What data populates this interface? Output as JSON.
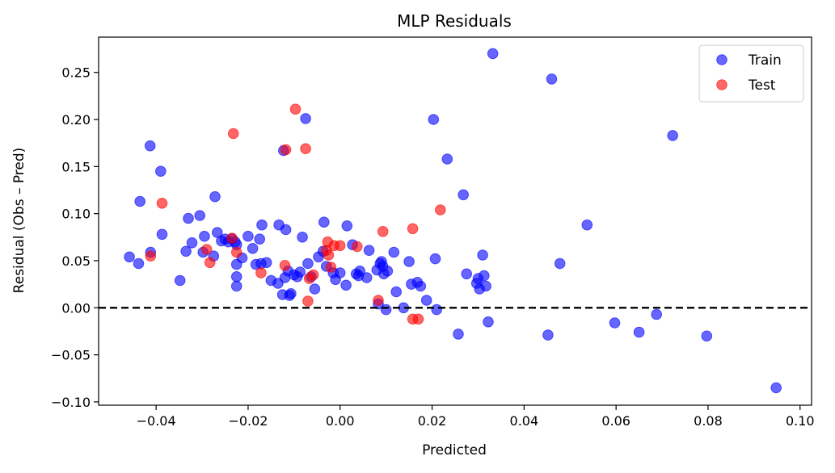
{
  "chart_data": {
    "type": "scatter",
    "title": "MLP Residuals",
    "xlabel": "Predicted",
    "ylabel": "Residual (Obs – Pred)",
    "xlim": [
      -0.0525,
      0.1025
    ],
    "ylim": [
      -0.1035,
      0.2875
    ],
    "xticks": [
      -0.04,
      -0.02,
      0.0,
      0.02,
      0.04,
      0.06,
      0.08,
      0.1
    ],
    "xtick_labels": [
      "−0.04",
      "−0.02",
      "0.00",
      "0.02",
      "0.04",
      "0.06",
      "0.08",
      "0.10"
    ],
    "yticks": [
      -0.1,
      -0.05,
      0.0,
      0.05,
      0.1,
      0.15,
      0.2,
      0.25
    ],
    "ytick_labels": [
      "−0.10",
      "−0.05",
      "0.00",
      "0.05",
      "0.10",
      "0.15",
      "0.20",
      "0.25"
    ],
    "grid": false,
    "legend_position": "top-right",
    "reference_line": {
      "y": 0.0,
      "style": "dashed",
      "color": "#000000"
    },
    "series": [
      {
        "name": "Train",
        "color": "#0000ff",
        "points": [
          [
            -0.0458,
            0.054
          ],
          [
            -0.0438,
            0.047
          ],
          [
            -0.0435,
            0.113
          ],
          [
            -0.0413,
            0.172
          ],
          [
            -0.0412,
            0.059
          ],
          [
            -0.039,
            0.145
          ],
          [
            -0.0387,
            0.078
          ],
          [
            -0.0348,
            0.029
          ],
          [
            -0.0335,
            0.06
          ],
          [
            -0.033,
            0.095
          ],
          [
            -0.0322,
            0.069
          ],
          [
            -0.0305,
            0.098
          ],
          [
            -0.0298,
            0.059
          ],
          [
            -0.0295,
            0.076
          ],
          [
            -0.0275,
            0.055
          ],
          [
            -0.0272,
            0.118
          ],
          [
            -0.0267,
            0.08
          ],
          [
            -0.0258,
            0.071
          ],
          [
            -0.025,
            0.073
          ],
          [
            -0.0243,
            0.07
          ],
          [
            -0.0235,
            0.073
          ],
          [
            -0.0228,
            0.07
          ],
          [
            -0.0225,
            0.046
          ],
          [
            -0.0225,
            0.067
          ],
          [
            -0.0225,
            0.033
          ],
          [
            -0.0225,
            0.023
          ],
          [
            -0.0213,
            0.053
          ],
          [
            -0.02,
            0.076
          ],
          [
            -0.019,
            0.063
          ],
          [
            -0.0183,
            0.046
          ],
          [
            -0.0175,
            0.073
          ],
          [
            -0.0172,
            0.047
          ],
          [
            -0.017,
            0.088
          ],
          [
            -0.016,
            0.048
          ],
          [
            -0.015,
            0.029
          ],
          [
            -0.0135,
            0.026
          ],
          [
            -0.0133,
            0.088
          ],
          [
            -0.0125,
            0.014
          ],
          [
            -0.0123,
            0.167
          ],
          [
            -0.012,
            0.032
          ],
          [
            -0.0118,
            0.083
          ],
          [
            -0.0113,
            0.039
          ],
          [
            -0.011,
            0.013
          ],
          [
            -0.0107,
            0.015
          ],
          [
            -0.01,
            0.035
          ],
          [
            -0.0093,
            0.033
          ],
          [
            -0.0087,
            0.038
          ],
          [
            -0.0082,
            0.075
          ],
          [
            -0.0075,
            0.201
          ],
          [
            -0.007,
            0.047
          ],
          [
            -0.0063,
            0.033
          ],
          [
            -0.0055,
            0.02
          ],
          [
            -0.0047,
            0.054
          ],
          [
            -0.0037,
            0.06
          ],
          [
            -0.0035,
            0.091
          ],
          [
            -0.003,
            0.044
          ],
          [
            -0.0015,
            0.037
          ],
          [
            -0.001,
            0.03
          ],
          [
            0.0,
            0.037
          ],
          [
            0.0013,
            0.024
          ],
          [
            0.0015,
            0.087
          ],
          [
            0.0027,
            0.067
          ],
          [
            0.0035,
            0.036
          ],
          [
            0.004,
            0.034
          ],
          [
            0.0043,
            0.039
          ],
          [
            0.0058,
            0.032
          ],
          [
            0.0063,
            0.061
          ],
          [
            0.008,
            0.04
          ],
          [
            0.0083,
            0.004
          ],
          [
            0.0087,
            0.047
          ],
          [
            0.009,
            0.049
          ],
          [
            0.0093,
            0.044
          ],
          [
            0.0095,
            0.036
          ],
          [
            0.01,
            -0.002
          ],
          [
            0.0103,
            0.039
          ],
          [
            0.0117,
            0.059
          ],
          [
            0.0122,
            0.017
          ],
          [
            0.0138,
            0.0
          ],
          [
            0.015,
            0.049
          ],
          [
            0.0155,
            0.025
          ],
          [
            0.0168,
            0.027
          ],
          [
            0.0175,
            0.023
          ],
          [
            0.0188,
            0.008
          ],
          [
            0.0203,
            0.2
          ],
          [
            0.0207,
            0.052
          ],
          [
            0.021,
            -0.002
          ],
          [
            0.0233,
            0.158
          ],
          [
            0.0257,
            -0.028
          ],
          [
            0.0268,
            0.12
          ],
          [
            0.0275,
            0.036
          ],
          [
            0.0297,
            0.026
          ],
          [
            0.03,
            0.031
          ],
          [
            0.0303,
            0.02
          ],
          [
            0.031,
            0.056
          ],
          [
            0.0313,
            0.034
          ],
          [
            0.0317,
            0.023
          ],
          [
            0.0322,
            -0.015
          ],
          [
            0.0332,
            0.27
          ],
          [
            0.0452,
            -0.029
          ],
          [
            0.046,
            0.243
          ],
          [
            0.0478,
            0.047
          ],
          [
            0.0537,
            0.088
          ],
          [
            0.0597,
            -0.016
          ],
          [
            0.065,
            -0.026
          ],
          [
            0.0688,
            -0.007
          ],
          [
            0.0723,
            0.183
          ],
          [
            0.0797,
            -0.03
          ],
          [
            0.0948,
            -0.085
          ]
        ]
      },
      {
        "name": "Test",
        "color": "#ff0000",
        "points": [
          [
            -0.0412,
            0.055
          ],
          [
            -0.0387,
            0.111
          ],
          [
            -0.029,
            0.062
          ],
          [
            -0.0283,
            0.048
          ],
          [
            -0.0235,
            0.074
          ],
          [
            -0.0232,
            0.185
          ],
          [
            -0.0225,
            0.059
          ],
          [
            -0.0172,
            0.037
          ],
          [
            -0.012,
            0.045
          ],
          [
            -0.0118,
            0.168
          ],
          [
            -0.0097,
            0.211
          ],
          [
            -0.0075,
            0.169
          ],
          [
            -0.007,
            0.007
          ],
          [
            -0.0067,
            0.031
          ],
          [
            -0.0058,
            0.035
          ],
          [
            -0.003,
            0.061
          ],
          [
            -0.0027,
            0.07
          ],
          [
            -0.0025,
            0.056
          ],
          [
            -0.002,
            0.043
          ],
          [
            -0.0013,
            0.066
          ],
          [
            0.0,
            0.066
          ],
          [
            0.0037,
            0.065
          ],
          [
            0.0083,
            0.008
          ],
          [
            0.0093,
            0.081
          ],
          [
            0.0158,
            -0.012
          ],
          [
            0.0158,
            0.084
          ],
          [
            0.017,
            -0.012
          ],
          [
            0.0218,
            0.104
          ]
        ]
      }
    ]
  }
}
